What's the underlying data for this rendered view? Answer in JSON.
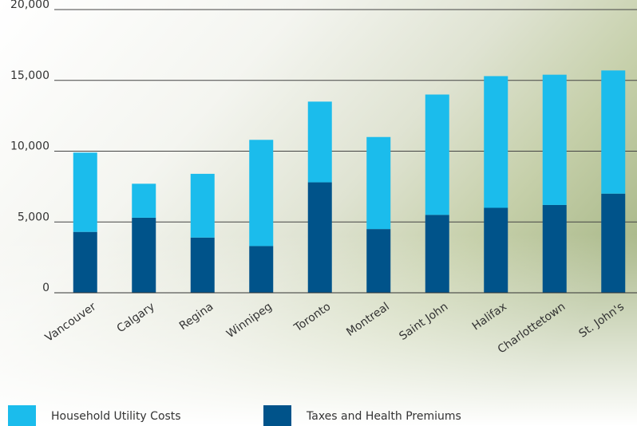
{
  "chart_data": {
    "type": "bar",
    "stacked": true,
    "categories": [
      "Vancouver",
      "Calgary",
      "Regina",
      "Winnipeg",
      "Toronto",
      "Montreal",
      "Saint John",
      "Halifax",
      "Charlottetown",
      "St. John's"
    ],
    "series": [
      {
        "name": "Household Utility Costs",
        "color": "#1bbcec",
        "values": [
          5600,
          2400,
          4500,
          7500,
          5700,
          6500,
          8500,
          9300,
          9200,
          8700
        ]
      },
      {
        "name": "Taxes and Health Premiums",
        "color": "#00538a",
        "values": [
          4300,
          5300,
          3900,
          3300,
          7800,
          4500,
          5500,
          6000,
          6200,
          7000
        ]
      }
    ],
    "ylim": [
      0,
      20000
    ],
    "yticks": [
      0,
      {
        "value": 5000,
        "label": "5,000"
      },
      {
        "value": 10000,
        "label": "10,000"
      },
      {
        "value": 15000,
        "label": "15,000"
      },
      {
        "value": 20000,
        "label": "20,000"
      }
    ],
    "grid": true,
    "legend": "bottom"
  }
}
